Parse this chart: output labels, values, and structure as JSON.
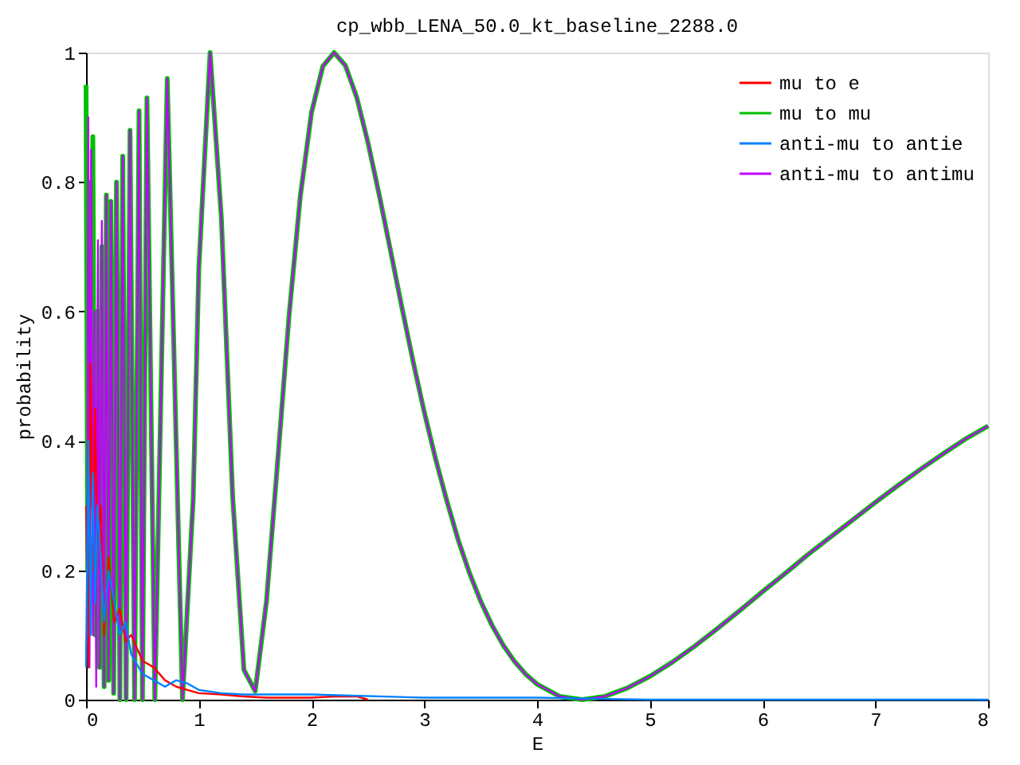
{
  "chart_data": {
    "type": "line",
    "title": "cp_wbb_LENA_50.0_kt_baseline_2288.0",
    "xlabel": "E",
    "ylabel": "probability",
    "xlim": [
      0,
      8
    ],
    "xticks": [
      0,
      1,
      2,
      3,
      4,
      5,
      6,
      7,
      8
    ],
    "ylim": [
      0,
      1
    ],
    "yticks": [
      0,
      0.2,
      0.4,
      0.6,
      0.8,
      1
    ],
    "grid": false,
    "legend": "top right",
    "marker": "none",
    "line_style": "solid",
    "series": [
      {
        "name": "mu to e",
        "color": "#ff0000",
        "x": [
          0,
          0.02,
          0.04,
          0.06,
          0.08,
          0.1,
          0.13,
          0.16,
          0.2,
          0.25,
          0.3,
          0.35,
          0.4,
          0.5,
          0.6,
          0.7,
          0.8,
          0.9,
          1.0,
          1.2,
          1.4,
          1.6,
          2.0,
          2.2,
          2.4,
          2.5
        ],
        "values": [
          0.3,
          0.05,
          0.52,
          0.2,
          0.45,
          0.25,
          0.3,
          0.1,
          0.22,
          0.12,
          0.14,
          0.09,
          0.1,
          0.06,
          0.05,
          0.03,
          0.02,
          0.015,
          0.01,
          0.008,
          0.005,
          0.003,
          0.003,
          0.005,
          0.005,
          0
        ]
      },
      {
        "name": "mu to mu",
        "color": "#00c000",
        "x": [
          0,
          0.015,
          0.03,
          0.045,
          0.06,
          0.08,
          0.1,
          0.12,
          0.14,
          0.16,
          0.18,
          0.2,
          0.22,
          0.245,
          0.27,
          0.3,
          0.325,
          0.355,
          0.39,
          0.43,
          0.47,
          0.5,
          0.54,
          0.61,
          0.72,
          0.855,
          0.95,
          1.0,
          1.1,
          1.2,
          1.3,
          1.4,
          1.5,
          1.6,
          1.7,
          1.8,
          1.9,
          2.0,
          2.1,
          2.2,
          2.3,
          2.4,
          2.5,
          2.6,
          2.7,
          2.8,
          2.9,
          3.0,
          3.1,
          3.2,
          3.3,
          3.4,
          3.5,
          3.6,
          3.7,
          3.8,
          3.9,
          4.0,
          4.2,
          4.4,
          4.6,
          4.8,
          5.0,
          5.2,
          5.4,
          5.6,
          5.8,
          6.0,
          6.2,
          6.4,
          6.6,
          6.8,
          7.0,
          7.2,
          7.4,
          7.6,
          7.8,
          8.0
        ],
        "values": [
          0.95,
          0.2,
          0.8,
          0.3,
          0.87,
          0.1,
          0.6,
          0.05,
          0.7,
          0.02,
          0.78,
          0.03,
          0.77,
          0.01,
          0.8,
          0.0,
          0.84,
          0.0,
          0.88,
          0.0,
          0.91,
          0.0,
          0.93,
          0.0,
          0.96,
          0.0,
          0.31,
          0.666,
          1.0,
          0.744,
          0.314,
          0.046,
          0.013,
          0.152,
          0.37,
          0.593,
          0.778,
          0.908,
          0.979,
          1.0,
          0.98,
          0.931,
          0.861,
          0.78,
          0.694,
          0.607,
          0.523,
          0.444,
          0.372,
          0.307,
          0.247,
          0.196,
          0.152,
          0.115,
          0.084,
          0.059,
          0.039,
          0.024,
          0.005,
          0.0,
          0.005,
          0.018,
          0.036,
          0.058,
          0.083,
          0.11,
          0.138,
          0.167,
          0.195,
          0.224,
          0.251,
          0.278,
          0.305,
          0.331,
          0.356,
          0.38,
          0.403,
          0.423
        ]
      },
      {
        "name": "anti-mu to antie",
        "color": "#0080ff",
        "x": [
          0,
          0.02,
          0.04,
          0.06,
          0.08,
          0.1,
          0.13,
          0.16,
          0.2,
          0.25,
          0.3,
          0.35,
          0.4,
          0.5,
          0.6,
          0.7,
          0.8,
          0.9,
          1.0,
          1.2,
          1.4,
          2.0,
          3.0,
          4.0,
          5,
          8
        ],
        "values": [
          0.05,
          0.4,
          0.1,
          0.35,
          0.15,
          0.3,
          0.22,
          0.12,
          0.2,
          0.15,
          0.1,
          0.12,
          0.07,
          0.04,
          0.03,
          0.02,
          0.03,
          0.025,
          0.015,
          0.01,
          0.008,
          0.008,
          0.003,
          0.003,
          0,
          0
        ]
      },
      {
        "name": "anti-mu to antimu",
        "color": "#c000ff",
        "x": [
          0.01,
          0.02,
          0.03,
          0.045,
          0.06,
          0.075,
          0.09,
          0.105,
          0.12,
          0.14,
          0.16,
          0.18,
          0.2,
          0.22,
          0.245,
          0.27,
          0.3,
          0.325,
          0.355,
          0.39,
          0.43,
          0.47,
          0.5,
          0.54,
          0.61,
          0.72,
          0.855,
          0.95,
          1.0,
          1.1,
          1.2,
          1.3,
          1.4,
          1.5,
          1.6,
          1.7,
          1.8,
          1.9,
          2.0,
          2.1,
          2.2,
          2.3,
          2.4,
          2.5,
          2.6,
          2.7,
          2.8,
          2.9,
          3.0,
          3.1,
          3.2,
          3.3,
          3.4,
          3.5,
          3.6,
          3.7,
          3.8,
          3.9,
          4.0,
          4.2,
          4.4,
          4.6,
          4.8,
          5.0,
          5.2,
          5.4,
          5.6,
          5.8,
          6.0,
          6.2,
          6.4,
          6.6,
          6.8,
          7.0,
          7.2,
          7.4,
          7.6,
          7.8,
          8.0
        ],
        "values": [
          0.1,
          0.9,
          0.05,
          0.85,
          0.1,
          0.6,
          0.02,
          0.71,
          0.05,
          0.74,
          0.02,
          0.78,
          0.03,
          0.77,
          0.01,
          0.8,
          0.0,
          0.84,
          0.0,
          0.88,
          0.0,
          0.91,
          0.0,
          0.93,
          0.0,
          0.96,
          0.0,
          0.31,
          0.666,
          1.0,
          0.744,
          0.314,
          0.046,
          0.013,
          0.152,
          0.37,
          0.593,
          0.778,
          0.908,
          0.979,
          1.0,
          0.98,
          0.931,
          0.861,
          0.78,
          0.694,
          0.607,
          0.523,
          0.444,
          0.372,
          0.307,
          0.247,
          0.196,
          0.152,
          0.115,
          0.084,
          0.059,
          0.039,
          0.024,
          0.005,
          0.0,
          0.005,
          0.018,
          0.036,
          0.058,
          0.083,
          0.11,
          0.138,
          0.167,
          0.195,
          0.224,
          0.251,
          0.278,
          0.305,
          0.331,
          0.356,
          0.38,
          0.403,
          0.423
        ]
      }
    ]
  }
}
